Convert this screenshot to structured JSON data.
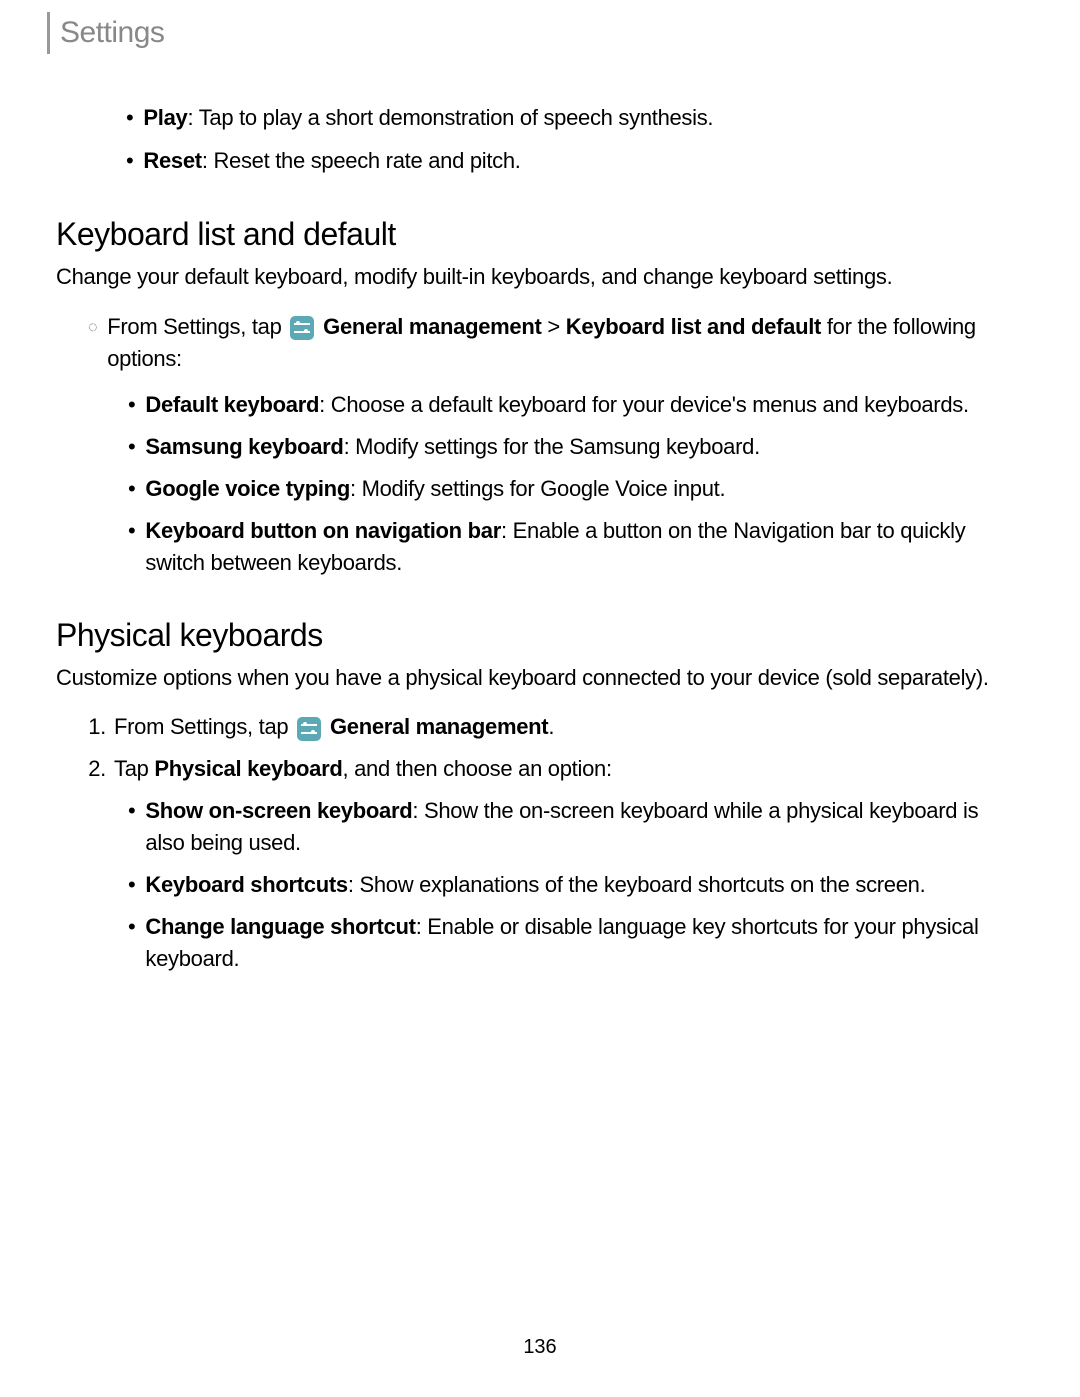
{
  "header": {
    "title": "Settings"
  },
  "topBullets": [
    {
      "label": "Play",
      "desc": ": Tap to play a short demonstration of speech synthesis."
    },
    {
      "label": "Reset",
      "desc": ": Reset the speech rate and pitch."
    }
  ],
  "section1": {
    "heading": "Keyboard list and default",
    "para": "Change your default keyboard, modify built-in keyboards, and change keyboard settings.",
    "intro_prefix": "From Settings, tap ",
    "gm_label": " General management",
    "intro_mid": " > ",
    "kld_label": "Keyboard list and default",
    "intro_suffix": " for the following options:",
    "subs": [
      {
        "label": "Default keyboard",
        "desc": ": Choose a default keyboard for your device's menus and keyboards."
      },
      {
        "label": "Samsung keyboard",
        "desc": ": Modify settings for the Samsung keyboard."
      },
      {
        "label": "Google voice typing",
        "desc": ": Modify settings for Google Voice input."
      },
      {
        "label": "Keyboard button on navigation bar",
        "desc": ": Enable a button on the Navigation bar to quickly switch between keyboards."
      }
    ]
  },
  "section2": {
    "heading": "Physical keyboards",
    "para": "Customize options when you have a physical keyboard connected to your device (sold separately).",
    "step1_prefix": "From Settings, tap ",
    "step1_gm": " General management",
    "step1_suffix": ".",
    "step2_prefix": "Tap ",
    "step2_pk": "Physical keyboard",
    "step2_suffix": ", and then choose an option:",
    "subs": [
      {
        "label": "Show on-screen keyboard",
        "desc": ": Show the on-screen keyboard while a physical keyboard is also being used."
      },
      {
        "label": "Keyboard shortcuts",
        "desc": ": Show explanations of the keyboard shortcuts on the screen."
      },
      {
        "label": "Change language shortcut",
        "desc": ": Enable or disable language key shortcuts for your physical keyboard."
      }
    ]
  },
  "pageNumber": "136",
  "markers": {
    "bullet": "•",
    "circle": "◌",
    "one": "1.",
    "two": "2."
  }
}
